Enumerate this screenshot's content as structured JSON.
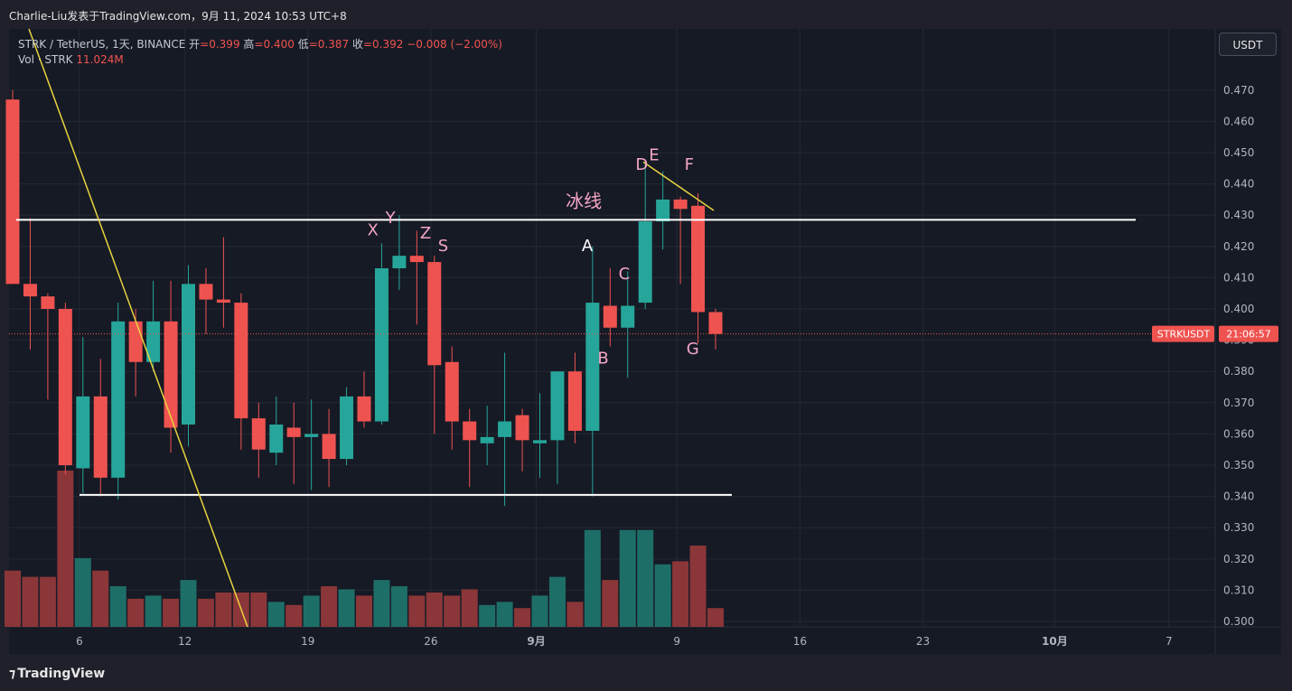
{
  "header": {
    "title": "Charlie-Liu发表于TradingView.com，9月 11, 2024 10:53 UTC+8"
  },
  "legend": {
    "symbol": "STRK / TetherUS, 1天, BINANCE",
    "open_label": "开",
    "open": "=0.399",
    "high_label": "高",
    "high": "=0.400",
    "low_label": "低",
    "low": "=0.387",
    "close_label": "收",
    "close": "=0.392",
    "change": "−0.008 (−2.00%)",
    "vol_label": "Vol · STRK",
    "vol_value": "11.024M"
  },
  "currency_button": "USDT",
  "price_tag": {
    "symbol": "STRKUSDT",
    "countdown": "21:06:57"
  },
  "footer": {
    "brand": "TradingView"
  },
  "colors": {
    "up": "#26a69a",
    "down": "#ef5350",
    "vol_up": "#1e6e68",
    "vol_down": "#8b3638",
    "background": "#161a25",
    "grid": "#242833",
    "trendline": "#e8d33f",
    "hline": "#ffffff",
    "label_pink": "#f3a6c4"
  },
  "chart_data": {
    "type": "candlestick",
    "symbol": "STRKUSDT",
    "ylim": [
      0.3,
      0.475
    ],
    "y_ticks": [
      "0.300",
      "0.310",
      "0.320",
      "0.330",
      "0.340",
      "0.350",
      "0.360",
      "0.370",
      "0.380",
      "0.390",
      "0.400",
      "0.410",
      "0.420",
      "0.430",
      "0.440",
      "0.450",
      "0.460",
      "0.470"
    ],
    "x_ticks": [
      "6",
      "12",
      "19",
      "26",
      "9月",
      "9",
      "16",
      "23",
      "10月",
      "7"
    ],
    "candles": [
      {
        "o": 0.467,
        "h": 0.47,
        "l": 0.408,
        "c": 0.408,
        "v": 0.316
      },
      {
        "o": 0.408,
        "h": 0.429,
        "l": 0.387,
        "c": 0.404,
        "v": 0.314
      },
      {
        "o": 0.404,
        "h": 0.405,
        "l": 0.371,
        "c": 0.4,
        "v": 0.314
      },
      {
        "o": 0.4,
        "h": 0.402,
        "l": 0.347,
        "c": 0.35,
        "v": 0.348
      },
      {
        "o": 0.349,
        "h": 0.391,
        "l": 0.341,
        "c": 0.372,
        "v": 0.32
      },
      {
        "o": 0.372,
        "h": 0.384,
        "l": 0.34,
        "c": 0.346,
        "v": 0.316
      },
      {
        "o": 0.346,
        "h": 0.402,
        "l": 0.339,
        "c": 0.396,
        "v": 0.311
      },
      {
        "o": 0.396,
        "h": 0.4,
        "l": 0.372,
        "c": 0.383,
        "v": 0.307
      },
      {
        "o": 0.383,
        "h": 0.409,
        "l": 0.38,
        "c": 0.396,
        "v": 0.308
      },
      {
        "o": 0.396,
        "h": 0.409,
        "l": 0.354,
        "c": 0.362,
        "v": 0.307
      },
      {
        "o": 0.363,
        "h": 0.414,
        "l": 0.356,
        "c": 0.408,
        "v": 0.313
      },
      {
        "o": 0.408,
        "h": 0.413,
        "l": 0.392,
        "c": 0.403,
        "v": 0.307
      },
      {
        "o": 0.403,
        "h": 0.423,
        "l": 0.394,
        "c": 0.402,
        "v": 0.309
      },
      {
        "o": 0.402,
        "h": 0.405,
        "l": 0.355,
        "c": 0.365,
        "v": 0.309
      },
      {
        "o": 0.365,
        "h": 0.37,
        "l": 0.346,
        "c": 0.355,
        "v": 0.309
      },
      {
        "o": 0.354,
        "h": 0.372,
        "l": 0.35,
        "c": 0.363,
        "v": 0.306
      },
      {
        "o": 0.362,
        "h": 0.37,
        "l": 0.344,
        "c": 0.359,
        "v": 0.305
      },
      {
        "o": 0.359,
        "h": 0.371,
        "l": 0.342,
        "c": 0.36,
        "v": 0.308
      },
      {
        "o": 0.36,
        "h": 0.368,
        "l": 0.343,
        "c": 0.352,
        "v": 0.311
      },
      {
        "o": 0.352,
        "h": 0.375,
        "l": 0.35,
        "c": 0.372,
        "v": 0.31
      },
      {
        "o": 0.372,
        "h": 0.38,
        "l": 0.362,
        "c": 0.364,
        "v": 0.308
      },
      {
        "o": 0.364,
        "h": 0.421,
        "l": 0.363,
        "c": 0.413,
        "v": 0.313
      },
      {
        "o": 0.413,
        "h": 0.43,
        "l": 0.406,
        "c": 0.417,
        "v": 0.311
      },
      {
        "o": 0.417,
        "h": 0.425,
        "l": 0.395,
        "c": 0.415,
        "v": 0.308
      },
      {
        "o": 0.415,
        "h": 0.417,
        "l": 0.36,
        "c": 0.382,
        "v": 0.309
      },
      {
        "o": 0.383,
        "h": 0.388,
        "l": 0.355,
        "c": 0.364,
        "v": 0.308
      },
      {
        "o": 0.364,
        "h": 0.368,
        "l": 0.343,
        "c": 0.358,
        "v": 0.31
      },
      {
        "o": 0.357,
        "h": 0.369,
        "l": 0.35,
        "c": 0.359,
        "v": 0.305
      },
      {
        "o": 0.359,
        "h": 0.386,
        "l": 0.337,
        "c": 0.364,
        "v": 0.306
      },
      {
        "o": 0.366,
        "h": 0.368,
        "l": 0.348,
        "c": 0.358,
        "v": 0.304
      },
      {
        "o": 0.357,
        "h": 0.373,
        "l": 0.346,
        "c": 0.358,
        "v": 0.308
      },
      {
        "o": 0.358,
        "h": 0.38,
        "l": 0.344,
        "c": 0.38,
        "v": 0.314
      },
      {
        "o": 0.38,
        "h": 0.386,
        "l": 0.357,
        "c": 0.361,
        "v": 0.306
      },
      {
        "o": 0.361,
        "h": 0.42,
        "l": 0.34,
        "c": 0.402,
        "v": 0.329
      },
      {
        "o": 0.401,
        "h": 0.413,
        "l": 0.388,
        "c": 0.394,
        "v": 0.313
      },
      {
        "o": 0.394,
        "h": 0.412,
        "l": 0.378,
        "c": 0.401,
        "v": 0.329
      },
      {
        "o": 0.402,
        "h": 0.447,
        "l": 0.4,
        "c": 0.428,
        "v": 0.329
      },
      {
        "o": 0.428,
        "h": 0.444,
        "l": 0.419,
        "c": 0.435,
        "v": 0.318
      },
      {
        "o": 0.435,
        "h": 0.436,
        "l": 0.408,
        "c": 0.432,
        "v": 0.319
      },
      {
        "o": 0.433,
        "h": 0.437,
        "l": 0.389,
        "c": 0.399,
        "v": 0.324
      },
      {
        "o": 0.399,
        "h": 0.4,
        "l": 0.387,
        "c": 0.392,
        "v": 0.304
      }
    ],
    "horizontal_lines": [
      {
        "price": 0.4285,
        "from_bar": 0,
        "to_date_label": "10月 7 area"
      },
      {
        "price": 0.3405,
        "from_bar": 4,
        "to_bar": 41
      }
    ],
    "trendlines": [
      {
        "from": {
          "bar": 1,
          "price": 0.485
        },
        "to": {
          "bar": 13,
          "price": 0.299
        }
      },
      {
        "from": {
          "bar": 36,
          "price": 0.447
        },
        "to": {
          "bar": 39,
          "price": 0.432
        }
      }
    ],
    "annotations": [
      {
        "text": "X",
        "bar": 20.5,
        "price": 0.4235
      },
      {
        "text": "Y",
        "bar": 21.5,
        "price": 0.4275
      },
      {
        "text": "Z",
        "bar": 23.5,
        "price": 0.4225
      },
      {
        "text": "S",
        "bar": 24.5,
        "price": 0.4185
      },
      {
        "text": "冰线",
        "bar": 32.5,
        "price": 0.4325
      },
      {
        "text": "A",
        "bar": 32.7,
        "price": 0.4185
      },
      {
        "text": "B",
        "bar": 33.6,
        "price": 0.3825
      },
      {
        "text": "C",
        "bar": 34.8,
        "price": 0.4095
      },
      {
        "text": "D",
        "bar": 35.8,
        "price": 0.4445
      },
      {
        "text": "E",
        "bar": 36.5,
        "price": 0.4475
      },
      {
        "text": "F",
        "bar": 38.5,
        "price": 0.4445
      },
      {
        "text": "G",
        "bar": 38.7,
        "price": 0.3855
      }
    ],
    "current_price": 0.392
  }
}
